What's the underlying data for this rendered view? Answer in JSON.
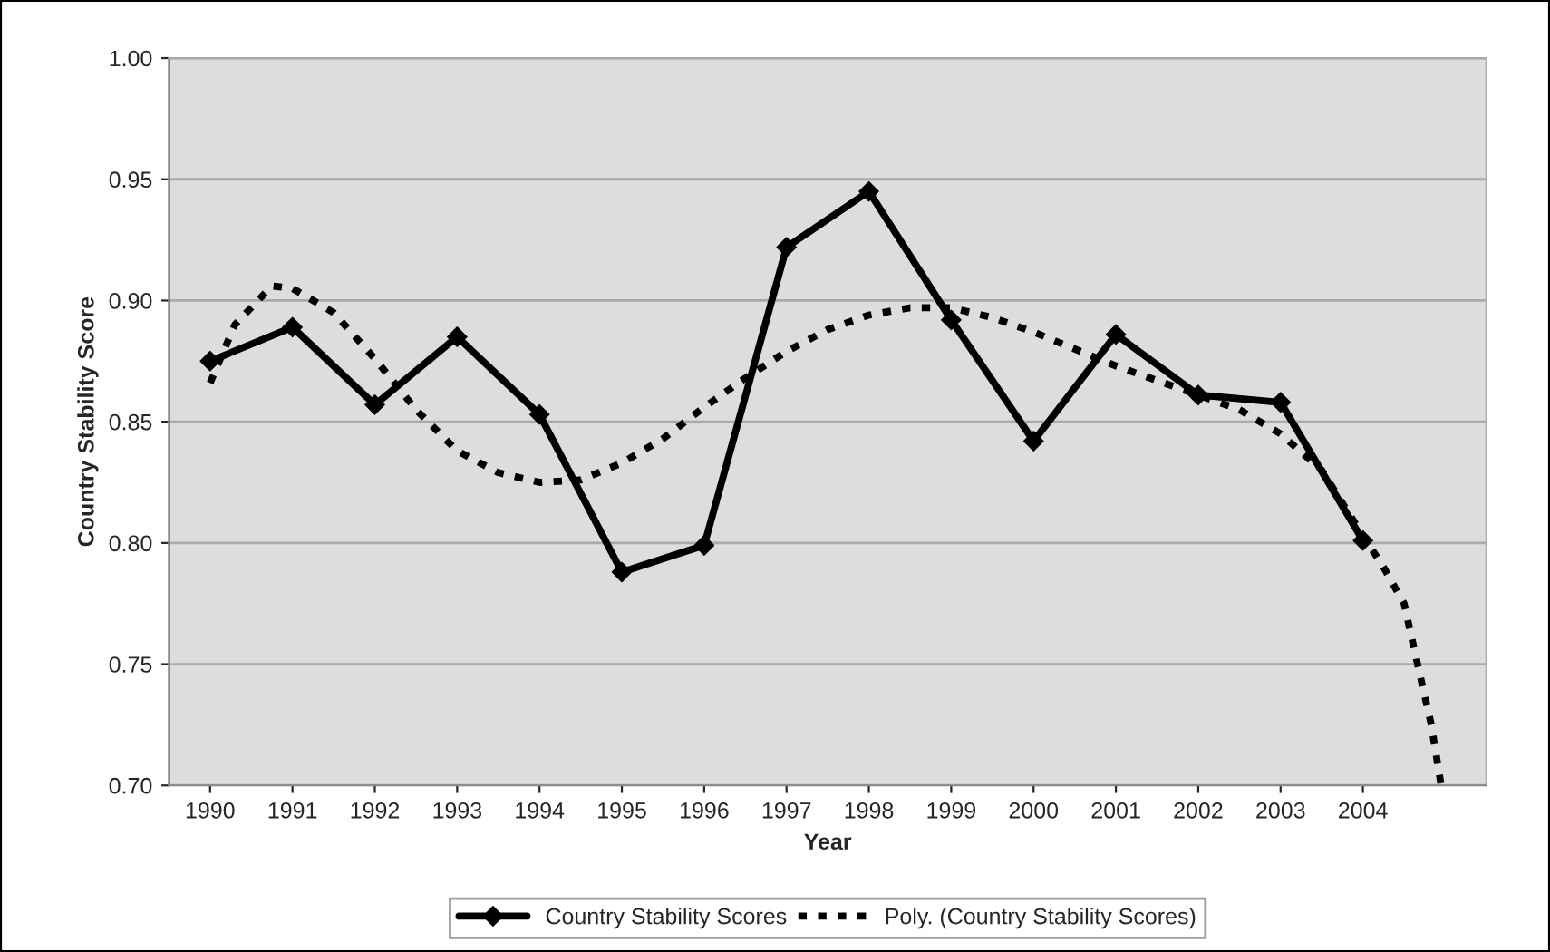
{
  "chart_data": {
    "type": "line",
    "xlabel": "Year",
    "ylabel": "Country Stability Score",
    "xlim": [
      1989.5,
      2005.5
    ],
    "xticks": [
      1990,
      1991,
      1992,
      1993,
      1994,
      1995,
      1996,
      1997,
      1998,
      1999,
      2000,
      2001,
      2002,
      2003,
      2004
    ],
    "ylim": [
      0.7,
      1.0
    ],
    "yticks": [
      {
        "value": 0.7,
        "label": "0.70"
      },
      {
        "value": 0.75,
        "label": "0.75"
      },
      {
        "value": 0.8,
        "label": "0.80"
      },
      {
        "value": 0.85,
        "label": "0.85"
      },
      {
        "value": 0.9,
        "label": "0.90"
      },
      {
        "value": 0.95,
        "label": "0.95"
      },
      {
        "value": 1.0,
        "label": "1.00"
      }
    ],
    "grid": "y",
    "legend": "bottom",
    "series": [
      {
        "name": "Country Stability Scores",
        "color": "#000000",
        "marker": "diamond",
        "line_style": "solid",
        "x": [
          1990,
          1991,
          1992,
          1993,
          1994,
          1995,
          1996,
          1997,
          1998,
          1999,
          2000,
          2001,
          2002,
          2003,
          2004
        ],
        "values": [
          0.875,
          0.889,
          0.857,
          0.885,
          0.853,
          0.788,
          0.799,
          0.922,
          0.945,
          0.892,
          0.842,
          0.886,
          0.861,
          0.858,
          0.801
        ]
      },
      {
        "name": "Poly. (Country Stability Scores)",
        "color": "#000000",
        "marker": "none",
        "line_style": "dashed",
        "x": [
          1990,
          1990.3,
          1990.75,
          1991,
          1991.5,
          1992,
          1992.5,
          1993,
          1993.5,
          1994,
          1994.5,
          1995,
          1995.5,
          1996,
          1996.5,
          1997,
          1997.5,
          1998,
          1998.5,
          1999,
          1999.5,
          2000,
          2000.5,
          2001,
          2001.5,
          2002,
          2002.5,
          2003,
          2003.5,
          2004,
          2004.25,
          2004.5,
          2004.67,
          2004.83,
          2004.95
        ],
        "values": [
          0.866,
          0.89,
          0.906,
          0.905,
          0.895,
          0.876,
          0.855,
          0.838,
          0.829,
          0.825,
          0.826,
          0.833,
          0.843,
          0.856,
          0.868,
          0.879,
          0.888,
          0.894,
          0.897,
          0.897,
          0.893,
          0.887,
          0.88,
          0.873,
          0.867,
          0.861,
          0.855,
          0.845,
          0.83,
          0.803,
          0.79,
          0.775,
          0.749,
          0.725,
          0.7
        ]
      }
    ]
  }
}
